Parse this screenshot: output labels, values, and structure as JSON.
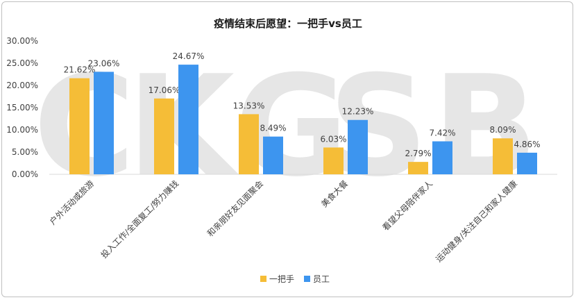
{
  "chart_data": {
    "type": "bar",
    "title": "疫情结束后愿望：一把手vs员工",
    "categories": [
      "户外活动或旅游",
      "投入工作/全面复工/努力赚钱",
      "和亲朋好友见面聚会",
      "美食大餐",
      "看望父母陪伴家人",
      "运动健身/关注自己和家人健康"
    ],
    "series": [
      {
        "name": "一把手",
        "values": [
          21.62,
          17.06,
          13.53,
          6.03,
          2.79,
          8.09
        ],
        "labels": [
          "21.62%",
          "17.06%",
          "13.53%",
          "6.03%",
          "2.79%",
          "8.09%"
        ],
        "color": "#F5BD37"
      },
      {
        "name": "员工",
        "values": [
          23.06,
          24.67,
          8.49,
          12.23,
          7.42,
          4.86
        ],
        "labels": [
          "23.06%",
          "24.67%",
          "8.49%",
          "12.23%",
          "7.42%",
          "4.86%"
        ],
        "color": "#3D95EF"
      }
    ],
    "ylim": [
      0,
      30
    ],
    "yticks": [
      "0.00%",
      "5.00%",
      "10.00%",
      "15.00%",
      "20.00%",
      "25.00%",
      "30.00%"
    ],
    "ytick_values": [
      0,
      5,
      10,
      15,
      20,
      25,
      30
    ],
    "grid": false,
    "legend_position": "bottom",
    "watermark": "C K G S B"
  }
}
